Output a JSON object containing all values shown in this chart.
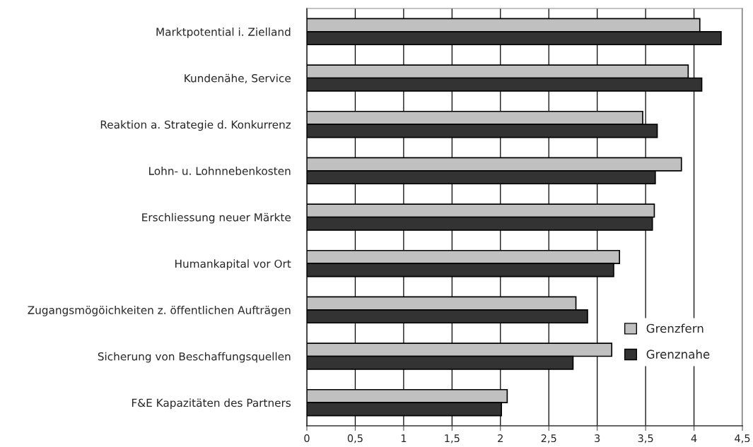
{
  "chart_data": {
    "type": "bar",
    "orientation": "horizontal",
    "categories": [
      "Marktpotential i. Zielland",
      "Kundenähe, Service",
      "Reaktion a. Strategie d. Konkurrenz",
      "Lohn- u. Lohnnebenkosten",
      "Erschliessung neuer Märkte",
      "Humankapital vor Ort",
      "Zugangsmögöichkeiten z. öffentlichen Aufträgen",
      "Sicherung von Beschaffungsquellen",
      "F&E Kapazitäten des Partners"
    ],
    "series": [
      {
        "name": "Grenzfern",
        "color": "#c0c0c0",
        "values": [
          4.06,
          3.94,
          3.47,
          3.87,
          3.59,
          3.23,
          2.78,
          3.15,
          2.07
        ]
      },
      {
        "name": "Grenznahe",
        "color": "#333333",
        "values": [
          4.28,
          4.08,
          3.62,
          3.6,
          3.57,
          3.17,
          2.9,
          2.75,
          2.01
        ]
      }
    ],
    "xlim": [
      0,
      4.5
    ],
    "xticks": [
      0,
      {
        "value": 0.5,
        "label": "0,5"
      },
      1,
      {
        "value": 1.5,
        "label": "1,5"
      },
      2,
      {
        "value": 2.5,
        "label": "2,5"
      },
      3,
      {
        "value": 3.5,
        "label": "3,5"
      },
      4,
      {
        "value": 4.5,
        "label": "4,5"
      }
    ],
    "grid": "x",
    "legend": "bottom right"
  }
}
